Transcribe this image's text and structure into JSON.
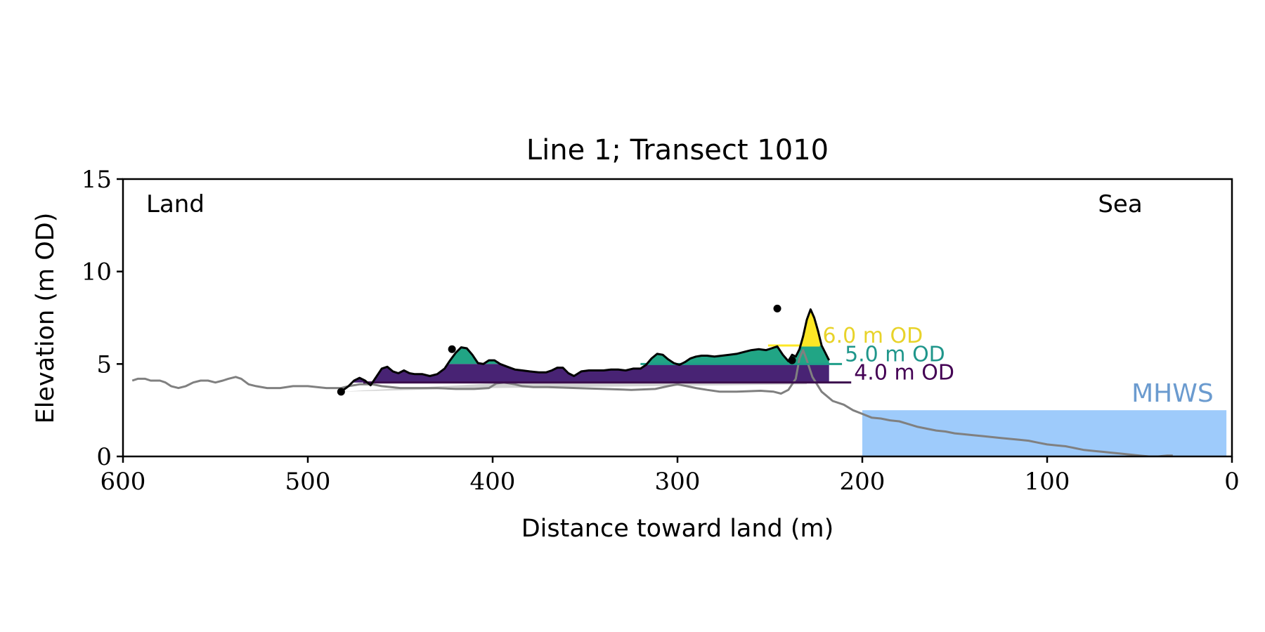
{
  "chart_data": {
    "type": "area",
    "title": "Line 1; Transect 1010",
    "xlabel": "Distance toward land (m)",
    "ylabel": "Elevation (m OD)",
    "xlim": [
      600,
      0
    ],
    "ylim": [
      0,
      15
    ],
    "x_ticks": [
      600,
      500,
      400,
      300,
      200,
      100,
      0
    ],
    "y_ticks": [
      0,
      5,
      10,
      15
    ],
    "grid": false,
    "corner_labels": {
      "left": "Land",
      "right": "Sea"
    },
    "mhws": {
      "label": "MHWS",
      "elevation": 2.5,
      "x_from": 200,
      "x_to": 3,
      "color": "#9ecbfb",
      "label_color": "#6b9bcf"
    },
    "profile_full": {
      "color": "#808080",
      "points": [
        [
          595,
          4.1
        ],
        [
          592,
          4.2
        ],
        [
          588,
          4.2
        ],
        [
          585,
          4.1
        ],
        [
          580,
          4.1
        ],
        [
          577,
          4.0
        ],
        [
          574,
          3.8
        ],
        [
          570,
          3.7
        ],
        [
          566,
          3.8
        ],
        [
          562,
          4.0
        ],
        [
          558,
          4.1
        ],
        [
          554,
          4.1
        ],
        [
          550,
          4.0
        ],
        [
          546,
          4.1
        ],
        [
          543,
          4.2
        ],
        [
          539,
          4.3
        ],
        [
          536,
          4.2
        ],
        [
          532,
          3.9
        ],
        [
          528,
          3.8
        ],
        [
          522,
          3.7
        ],
        [
          515,
          3.7
        ],
        [
          508,
          3.8
        ],
        [
          500,
          3.8
        ],
        [
          495,
          3.75
        ],
        [
          490,
          3.7
        ],
        [
          485,
          3.7
        ],
        [
          482,
          3.7
        ],
        [
          478,
          3.8
        ],
        [
          472,
          3.9
        ],
        [
          465,
          3.9
        ],
        [
          460,
          3.8
        ],
        [
          455,
          3.75
        ],
        [
          450,
          3.7
        ],
        [
          440,
          3.7
        ],
        [
          430,
          3.7
        ],
        [
          420,
          3.65
        ],
        [
          410,
          3.65
        ],
        [
          402,
          3.7
        ],
        [
          398,
          3.95
        ],
        [
          394,
          4.0
        ],
        [
          388,
          3.9
        ],
        [
          384,
          3.8
        ],
        [
          378,
          3.75
        ],
        [
          370,
          3.75
        ],
        [
          355,
          3.7
        ],
        [
          340,
          3.65
        ],
        [
          325,
          3.6
        ],
        [
          312,
          3.65
        ],
        [
          305,
          3.8
        ],
        [
          300,
          3.9
        ],
        [
          295,
          3.8
        ],
        [
          290,
          3.7
        ],
        [
          284,
          3.6
        ],
        [
          277,
          3.5
        ],
        [
          268,
          3.5
        ],
        [
          255,
          3.55
        ],
        [
          248,
          3.5
        ],
        [
          244,
          3.4
        ],
        [
          240,
          3.6
        ],
        [
          236,
          4.2
        ],
        [
          234,
          5.3
        ],
        [
          232,
          5.75
        ],
        [
          230,
          5.2
        ],
        [
          227,
          4.3
        ],
        [
          222,
          3.5
        ],
        [
          216,
          3.0
        ],
        [
          210,
          2.8
        ],
        [
          205,
          2.5
        ],
        [
          200,
          2.3
        ],
        [
          195,
          2.1
        ],
        [
          190,
          2.05
        ],
        [
          185,
          1.95
        ],
        [
          180,
          1.9
        ],
        [
          175,
          1.75
        ],
        [
          170,
          1.6
        ],
        [
          165,
          1.5
        ],
        [
          160,
          1.4
        ],
        [
          155,
          1.35
        ],
        [
          150,
          1.25
        ],
        [
          145,
          1.2
        ],
        [
          140,
          1.15
        ],
        [
          135,
          1.1
        ],
        [
          130,
          1.05
        ],
        [
          125,
          1.0
        ],
        [
          120,
          0.95
        ],
        [
          115,
          0.9
        ],
        [
          110,
          0.85
        ],
        [
          105,
          0.75
        ],
        [
          100,
          0.65
        ],
        [
          95,
          0.6
        ],
        [
          90,
          0.55
        ],
        [
          85,
          0.45
        ],
        [
          80,
          0.35
        ],
        [
          75,
          0.3
        ],
        [
          70,
          0.25
        ],
        [
          65,
          0.2
        ],
        [
          60,
          0.15
        ],
        [
          55,
          0.1
        ],
        [
          50,
          0.05
        ],
        [
          45,
          0.0
        ],
        [
          40,
          0.0
        ],
        [
          35,
          0.05
        ],
        [
          32,
          0.05
        ]
      ]
    },
    "dune_profile": {
      "color": "#000000",
      "points": [
        [
          482,
          3.5
        ],
        [
          478,
          3.8
        ],
        [
          475,
          4.1
        ],
        [
          472,
          4.25
        ],
        [
          469,
          4.1
        ],
        [
          466,
          3.85
        ],
        [
          463,
          4.3
        ],
        [
          460,
          4.75
        ],
        [
          457,
          4.85
        ],
        [
          454,
          4.6
        ],
        [
          451,
          4.5
        ],
        [
          448,
          4.65
        ],
        [
          445,
          4.5
        ],
        [
          442,
          4.45
        ],
        [
          438,
          4.45
        ],
        [
          434,
          4.35
        ],
        [
          430,
          4.45
        ],
        [
          426,
          4.75
        ],
        [
          423,
          5.2
        ],
        [
          420,
          5.6
        ],
        [
          417,
          5.9
        ],
        [
          414,
          5.85
        ],
        [
          411,
          5.5
        ],
        [
          408,
          5.05
        ],
        [
          405,
          5.0
        ],
        [
          402,
          5.2
        ],
        [
          399,
          5.2
        ],
        [
          396,
          5.0
        ],
        [
          392,
          4.85
        ],
        [
          388,
          4.7
        ],
        [
          384,
          4.65
        ],
        [
          380,
          4.6
        ],
        [
          375,
          4.55
        ],
        [
          371,
          4.55
        ],
        [
          368,
          4.65
        ],
        [
          365,
          4.8
        ],
        [
          362,
          4.8
        ],
        [
          359,
          4.5
        ],
        [
          356,
          4.35
        ],
        [
          352,
          4.6
        ],
        [
          348,
          4.65
        ],
        [
          344,
          4.65
        ],
        [
          340,
          4.65
        ],
        [
          336,
          4.7
        ],
        [
          332,
          4.7
        ],
        [
          328,
          4.65
        ],
        [
          324,
          4.75
        ],
        [
          320,
          4.75
        ],
        [
          317,
          4.95
        ],
        [
          314,
          5.3
        ],
        [
          311,
          5.55
        ],
        [
          308,
          5.5
        ],
        [
          305,
          5.25
        ],
        [
          302,
          5.05
        ],
        [
          299,
          4.95
        ],
        [
          296,
          5.1
        ],
        [
          293,
          5.3
        ],
        [
          290,
          5.4
        ],
        [
          287,
          5.45
        ],
        [
          284,
          5.45
        ],
        [
          280,
          5.4
        ],
        [
          276,
          5.45
        ],
        [
          272,
          5.5
        ],
        [
          268,
          5.55
        ],
        [
          264,
          5.65
        ],
        [
          260,
          5.75
        ],
        [
          256,
          5.8
        ],
        [
          252,
          5.75
        ],
        [
          249,
          5.85
        ],
        [
          246,
          5.95
        ],
        [
          243,
          5.5
        ],
        [
          240,
          5.15
        ],
        [
          238,
          5.5
        ],
        [
          236,
          5.4
        ],
        [
          234,
          5.8
        ],
        [
          232,
          6.5
        ],
        [
          230,
          7.4
        ],
        [
          228,
          7.95
        ],
        [
          226,
          7.5
        ],
        [
          224,
          6.8
        ],
        [
          222,
          6.0
        ],
        [
          220,
          5.6
        ],
        [
          218,
          5.2
        ]
      ]
    },
    "markers": [
      [
        482,
        3.5
      ],
      [
        422,
        5.8
      ],
      [
        246,
        8.0
      ],
      [
        238,
        5.2
      ]
    ],
    "thresholds": [
      {
        "label": "6.0 m OD",
        "elevation": 6.0,
        "color": "#fde725",
        "text_color": "#e8d32a",
        "x_from": 251,
        "x_to": 223
      },
      {
        "label": "5.0 m OD",
        "elevation": 5.0,
        "color": "#1f9e89",
        "text_color": "#1f968b",
        "x_from": 320,
        "x_to": 211
      },
      {
        "label": "4.0 m OD",
        "elevation": 4.0,
        "color": "#3b0f4e",
        "text_color": "#440154",
        "x_from": 470,
        "x_to": 206
      }
    ],
    "fill_colors": {
      "above_6": "#fde725",
      "band_5_6": "#21a585",
      "band_4_5": "#482374",
      "below_4": "#d3d3d3"
    }
  }
}
